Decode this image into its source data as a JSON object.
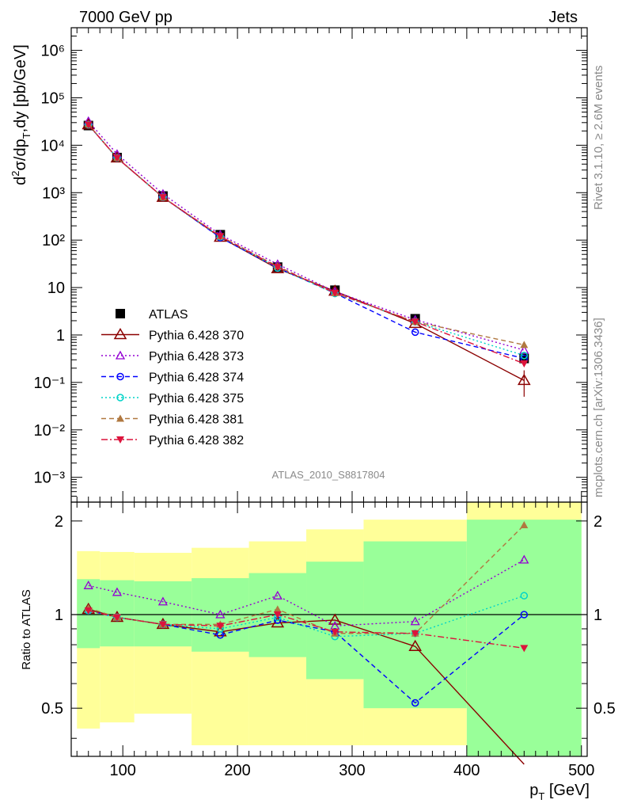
{
  "header": {
    "left": "7000 GeV pp",
    "right": "Jets"
  },
  "side_text": {
    "rivet": "Rivet 3.1.10, ≥ 2.6M events",
    "mcplots": "mcplots.cern.ch [arXiv:1306.3436]"
  },
  "analysis_label": "ATLAS_2010_S8817804",
  "colors": {
    "data": "#000000",
    "band_inner": "#99ff99",
    "band_outer": "#ffff99"
  },
  "chart_data": [
    {
      "type": "scatter",
      "name": "main",
      "ylabel": "d²σ/dp_T,dy [pb/GeV]",
      "yscale": "log",
      "ylim": [
        0.0003,
        3000000
      ],
      "xlim": [
        55,
        505
      ],
      "y_ticks": [
        0.001,
        0.01,
        0.1,
        1,
        10,
        100,
        1000,
        10000,
        100000,
        1000000
      ],
      "y_tick_labels": [
        "10⁻³",
        "10⁻²",
        "10⁻¹",
        "1",
        "10",
        "10²",
        "10³",
        "10⁴",
        "10⁵",
        "10⁶"
      ],
      "legend_position": "bottom-left",
      "x": [
        70,
        95,
        135,
        185,
        235,
        285,
        355,
        450
      ],
      "series": [
        {
          "name": "ATLAS",
          "color": "#000000",
          "marker": "square",
          "line": "none",
          "values": [
            26000,
            5500,
            850,
            130,
            27,
            8.8,
            2.2,
            0.32
          ]
        },
        {
          "name": "Pythia 6.428 370",
          "color": "#8b0000",
          "marker": "triangle-open",
          "line": "solid",
          "values": [
            27000,
            5400,
            800,
            115,
            25,
            8.4,
            1.75,
            0.11
          ]
        },
        {
          "name": "Pythia 6.428 373",
          "color": "#9400d3",
          "marker": "triangle-open-small",
          "line": "dotted",
          "values": [
            32000,
            6500,
            940,
            130,
            31,
            8.2,
            2.1,
            0.48
          ]
        },
        {
          "name": "Pythia 6.428 374",
          "color": "#0000ff",
          "marker": "circle-open",
          "line": "dashed",
          "values": [
            27000,
            5400,
            800,
            113,
            26,
            7.6,
            1.15,
            0.32
          ]
        },
        {
          "name": "Pythia 6.428 375",
          "color": "#00d3c8",
          "marker": "circle-open",
          "line": "dotted",
          "values": [
            27000,
            5400,
            800,
            118,
            26,
            7.5,
            1.9,
            0.37
          ]
        },
        {
          "name": "Pythia 6.428 381",
          "color": "#b07840",
          "marker": "triangle-filled",
          "line": "dashed",
          "values": [
            27500,
            5400,
            800,
            121,
            28,
            7.7,
            1.9,
            0.62
          ]
        },
        {
          "name": "Pythia 6.428 382",
          "color": "#dc143c",
          "marker": "triangle-down-filled",
          "line": "dashdot",
          "values": [
            27000,
            5400,
            800,
            120,
            27,
            7.7,
            1.9,
            0.25
          ]
        }
      ]
    },
    {
      "type": "scatter",
      "name": "ratio",
      "xlabel": "p_T [GeV]",
      "ylabel": "Ratio to ATLAS",
      "xlim": [
        55,
        505
      ],
      "ylim": [
        0.35,
        2.3
      ],
      "x_ticks": [
        100,
        200,
        300,
        400,
        500
      ],
      "y_ticks": [
        0.5,
        1,
        2
      ],
      "y_tick_labels": [
        "0.5",
        "1",
        "2"
      ],
      "bands": {
        "edges": [
          60,
          80,
          110,
          160,
          210,
          260,
          310,
          400,
          500
        ],
        "inner_lo": [
          0.78,
          0.79,
          0.79,
          0.76,
          0.73,
          0.62,
          0.5,
          0.34
        ],
        "inner_hi": [
          1.3,
          1.29,
          1.28,
          1.31,
          1.36,
          1.48,
          1.72,
          2.02
        ],
        "outer_lo": [
          0.43,
          0.45,
          0.48,
          0.38,
          0.38,
          0.38,
          0.38,
          0.34
        ],
        "outer_hi": [
          1.6,
          1.59,
          1.58,
          1.64,
          1.72,
          1.88,
          2.02,
          2.5
        ]
      },
      "x": [
        70,
        95,
        135,
        185,
        235,
        285,
        355,
        450
      ],
      "series": [
        {
          "name": "Pythia 6.428 370",
          "values": [
            1.04,
            0.98,
            0.93,
            0.88,
            0.94,
            0.96,
            0.79,
            0.33
          ]
        },
        {
          "name": "Pythia 6.428 373",
          "values": [
            1.24,
            1.18,
            1.1,
            1.0,
            1.15,
            0.92,
            0.95,
            1.5
          ]
        },
        {
          "name": "Pythia 6.428 374",
          "values": [
            1.03,
            0.98,
            0.93,
            0.86,
            0.96,
            0.88,
            0.52,
            1.0
          ]
        },
        {
          "name": "Pythia 6.428 375",
          "values": [
            1.03,
            0.98,
            0.93,
            0.9,
            0.98,
            0.85,
            0.87,
            1.15
          ]
        },
        {
          "name": "Pythia 6.428 381",
          "values": [
            1.05,
            0.98,
            0.93,
            0.93,
            1.04,
            0.87,
            0.87,
            1.94
          ]
        },
        {
          "name": "Pythia 6.428 382",
          "values": [
            1.03,
            0.98,
            0.93,
            0.92,
            1.0,
            0.88,
            0.87,
            0.78
          ]
        }
      ]
    }
  ]
}
